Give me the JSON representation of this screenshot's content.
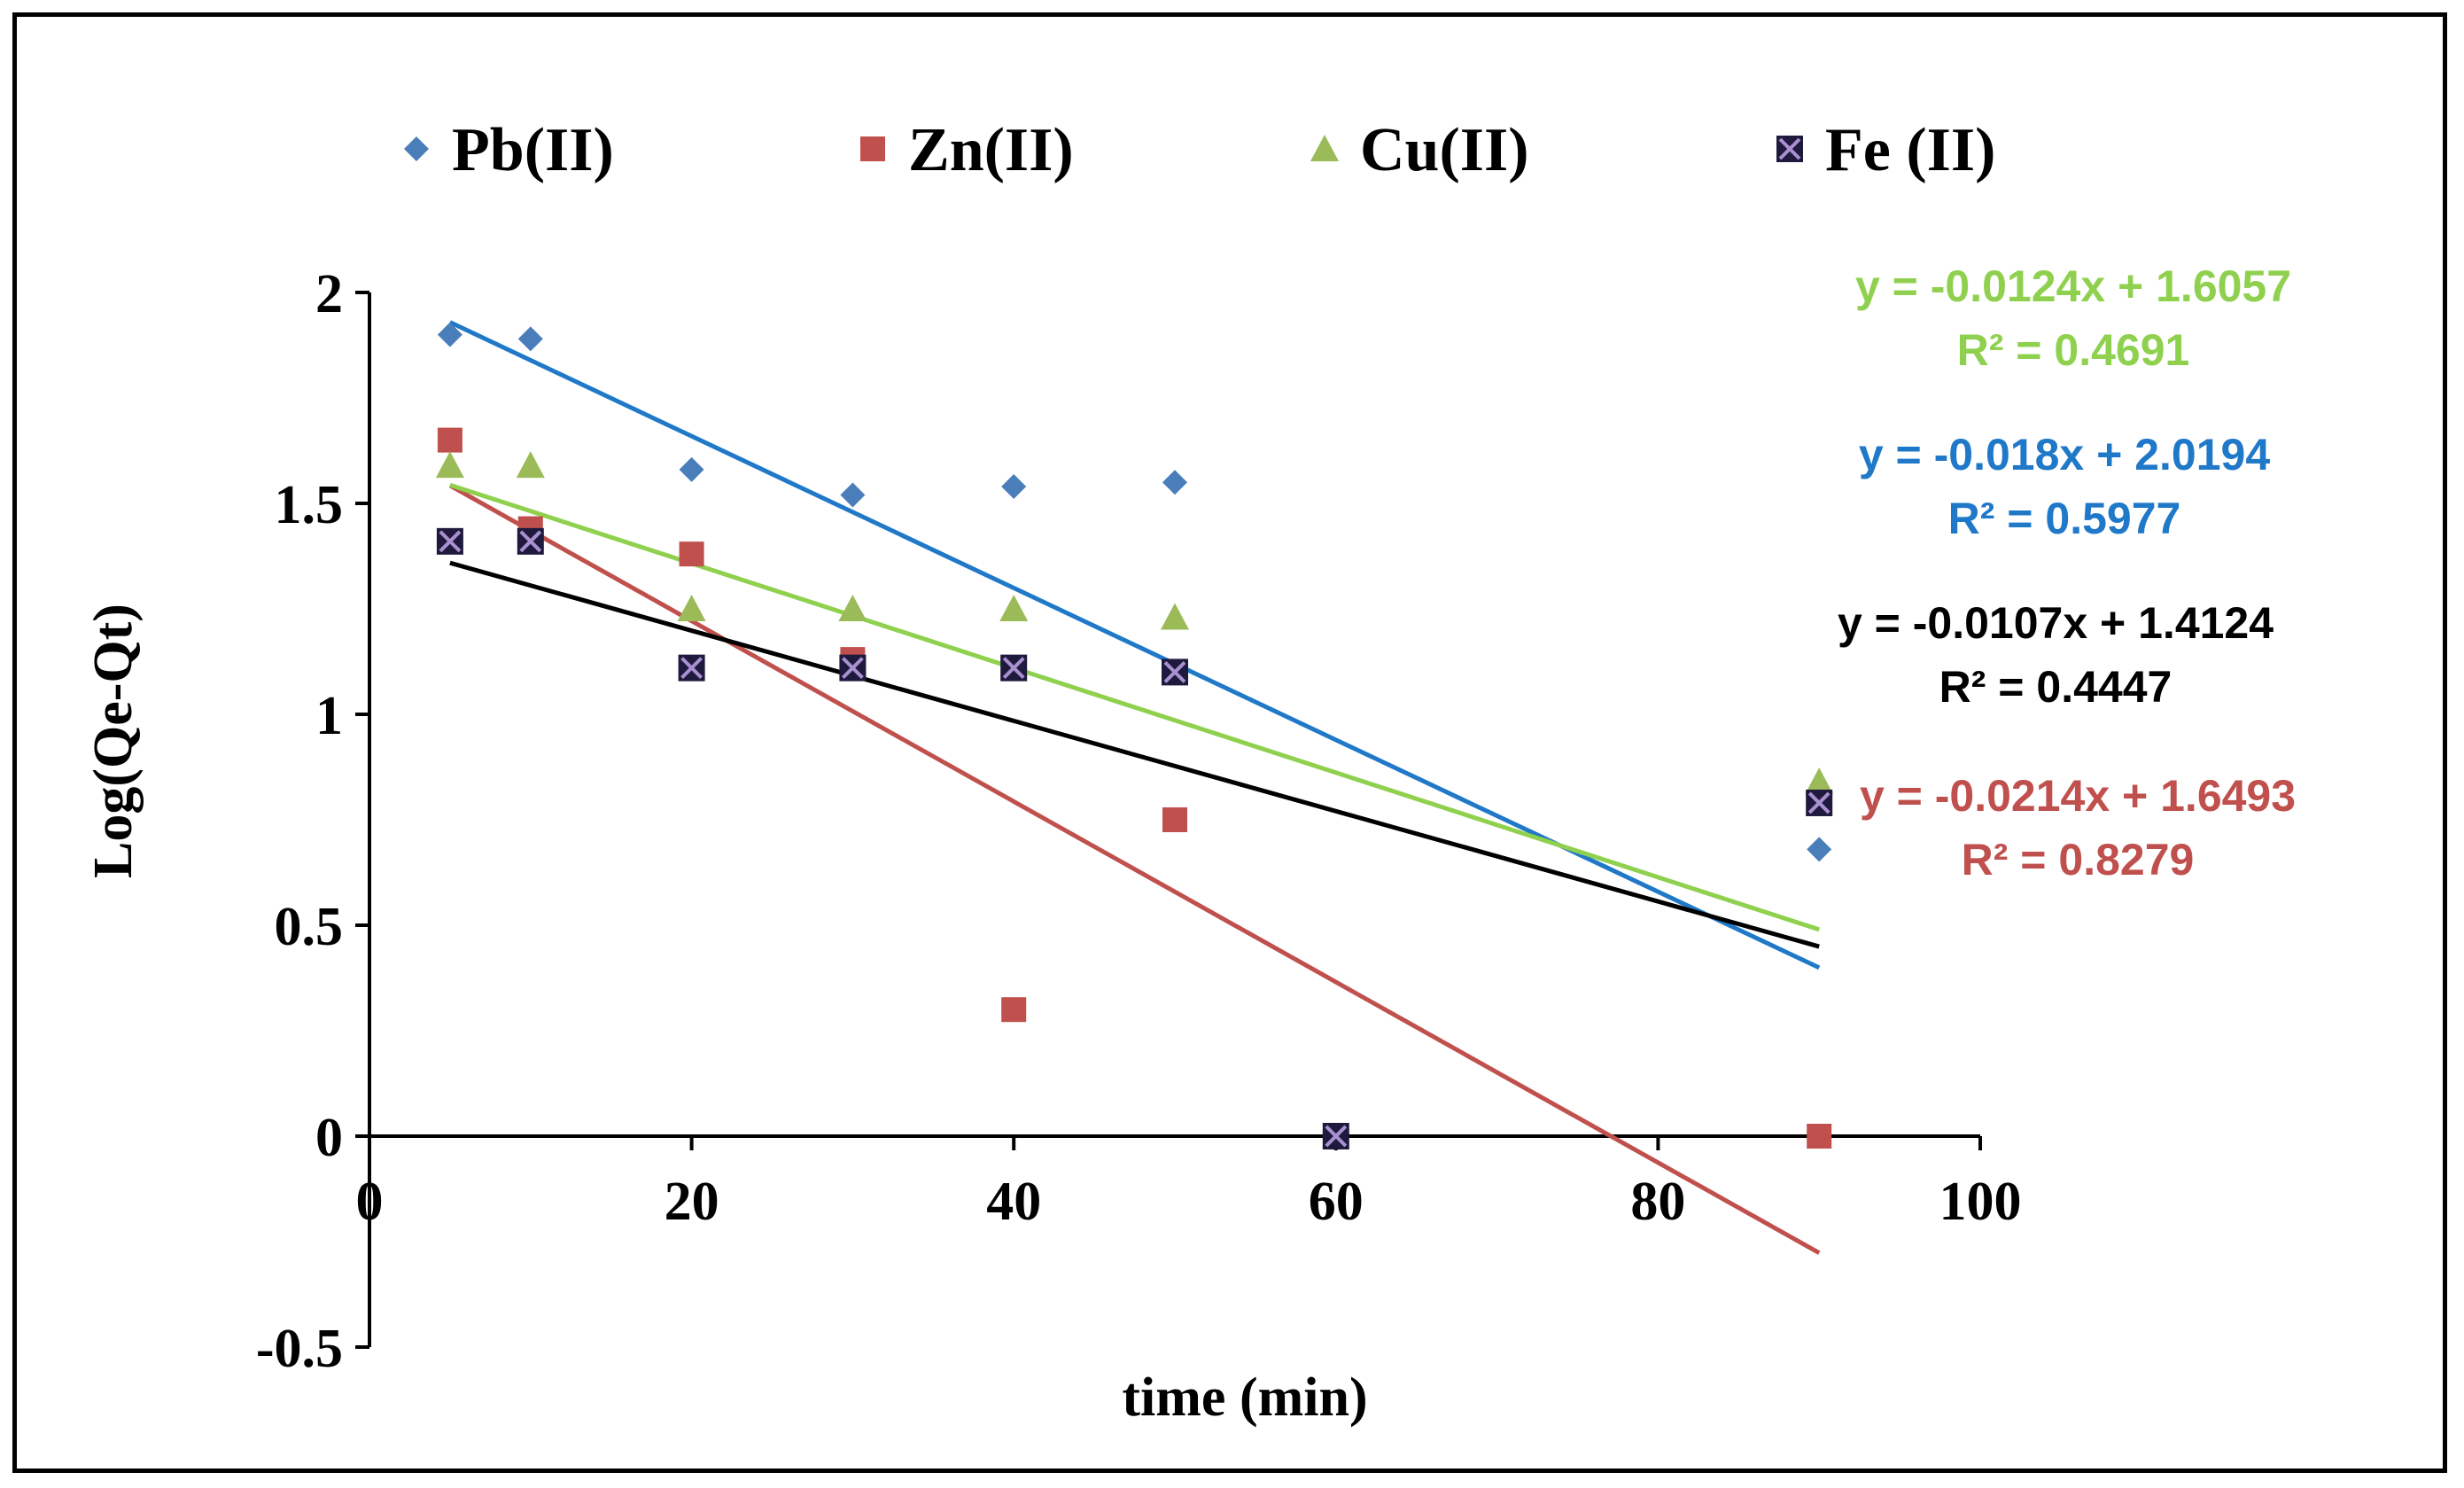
{
  "chart_data": {
    "type": "scatter",
    "xlabel": "time (min)",
    "ylabel": "Log(Qe-Qt)",
    "xlim": [
      0,
      100
    ],
    "ylim": [
      -0.5,
      2
    ],
    "x_ticks": [
      "0",
      "20",
      "40",
      "60",
      "80",
      "100"
    ],
    "y_ticks": [
      "-0.5",
      "0",
      "0.5",
      "1",
      "1.5",
      "2"
    ],
    "legend_position": "top",
    "series": [
      {
        "name": "Pb(II)",
        "marker": "diamond",
        "color": "#4a7ebb",
        "trend_color": "#1f78c8",
        "points": [
          [
            5,
            1.9
          ],
          [
            10,
            1.89
          ],
          [
            20,
            1.58
          ],
          [
            30,
            1.52
          ],
          [
            40,
            1.54
          ],
          [
            50,
            1.55
          ],
          [
            90,
            0.68
          ]
        ],
        "trendline": {
          "slope": -0.018,
          "intercept": 2.0194,
          "x_range": [
            5,
            90
          ]
        },
        "equation": "y = -0.018x + 2.0194",
        "r2": "R² = 0.5977",
        "label_color": "#1f78c8"
      },
      {
        "name": "Zn(II)",
        "marker": "square",
        "color": "#c0504d",
        "trend_color": "#c0504d",
        "points": [
          [
            5,
            1.65
          ],
          [
            10,
            1.44
          ],
          [
            20,
            1.38
          ],
          [
            30,
            1.13
          ],
          [
            40,
            0.3
          ],
          [
            50,
            0.75
          ],
          [
            60,
            0.0
          ],
          [
            90,
            0.0
          ]
        ],
        "trendline": {
          "slope": -0.0214,
          "intercept": 1.6493,
          "x_range": [
            5,
            90
          ]
        },
        "equation": "y = -0.0214x + 1.6493",
        "r2": "R² = 0.8279",
        "label_color": "#c0504d"
      },
      {
        "name": "Cu(II)",
        "marker": "triangle",
        "color": "#9bbb59",
        "trend_color": "#8fd14f",
        "points": [
          [
            5,
            1.59
          ],
          [
            10,
            1.59
          ],
          [
            20,
            1.25
          ],
          [
            30,
            1.25
          ],
          [
            40,
            1.25
          ],
          [
            50,
            1.23
          ],
          [
            90,
            0.84
          ]
        ],
        "trendline": {
          "slope": -0.0124,
          "intercept": 1.6057,
          "x_range": [
            5,
            90
          ]
        },
        "equation": "y = -0.0124x + 1.6057",
        "r2": "R² = 0.4691",
        "label_color": "#8fd14f"
      },
      {
        "name": "Fe (II)",
        "marker": "xsquare",
        "color": "#1f1a3d",
        "trend_color": "#000000",
        "points": [
          [
            5,
            1.41
          ],
          [
            10,
            1.41
          ],
          [
            20,
            1.11
          ],
          [
            30,
            1.11
          ],
          [
            40,
            1.11
          ],
          [
            50,
            1.1
          ],
          [
            60,
            0.0
          ],
          [
            90,
            0.79
          ]
        ],
        "trendline": {
          "slope": -0.0107,
          "intercept": 1.4124,
          "x_range": [
            5,
            90
          ]
        },
        "equation": "y = -0.0107x + 1.4124",
        "r2": "R² = 0.4447",
        "label_color": "#000000"
      }
    ]
  }
}
